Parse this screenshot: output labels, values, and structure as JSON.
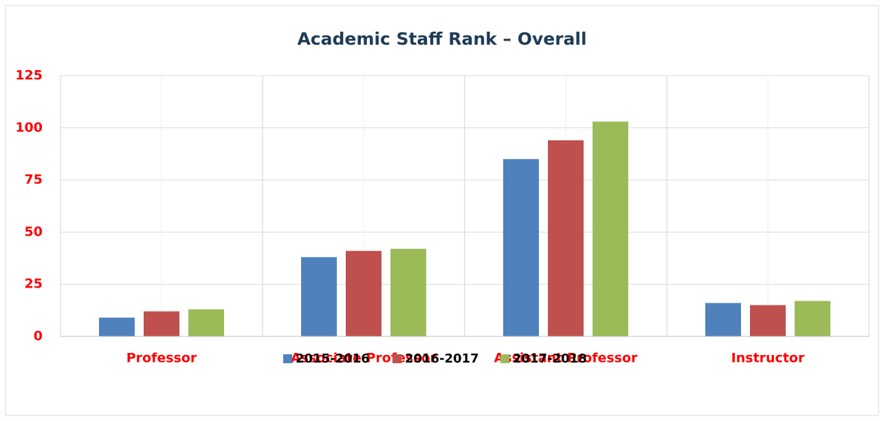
{
  "chart_data": {
    "type": "bar",
    "title": "Academic Staff Rank – Overall",
    "categories": [
      "Professor",
      "Associate Professor",
      "Assistant Professor",
      "Instructor"
    ],
    "series": [
      {
        "name": "2015-2016",
        "color": "#4f81bd",
        "values": [
          9,
          38,
          85,
          16
        ]
      },
      {
        "name": "2016-2017",
        "color": "#c0504d",
        "values": [
          12,
          41,
          94,
          15
        ]
      },
      {
        "name": "2017-2018",
        "color": "#9bbb59",
        "values": [
          13,
          42,
          103,
          17
        ]
      }
    ],
    "ylim": [
      0,
      125
    ],
    "yticks": [
      0,
      25,
      50,
      75,
      100,
      125
    ],
    "grid": true,
    "legend": "bottom"
  }
}
